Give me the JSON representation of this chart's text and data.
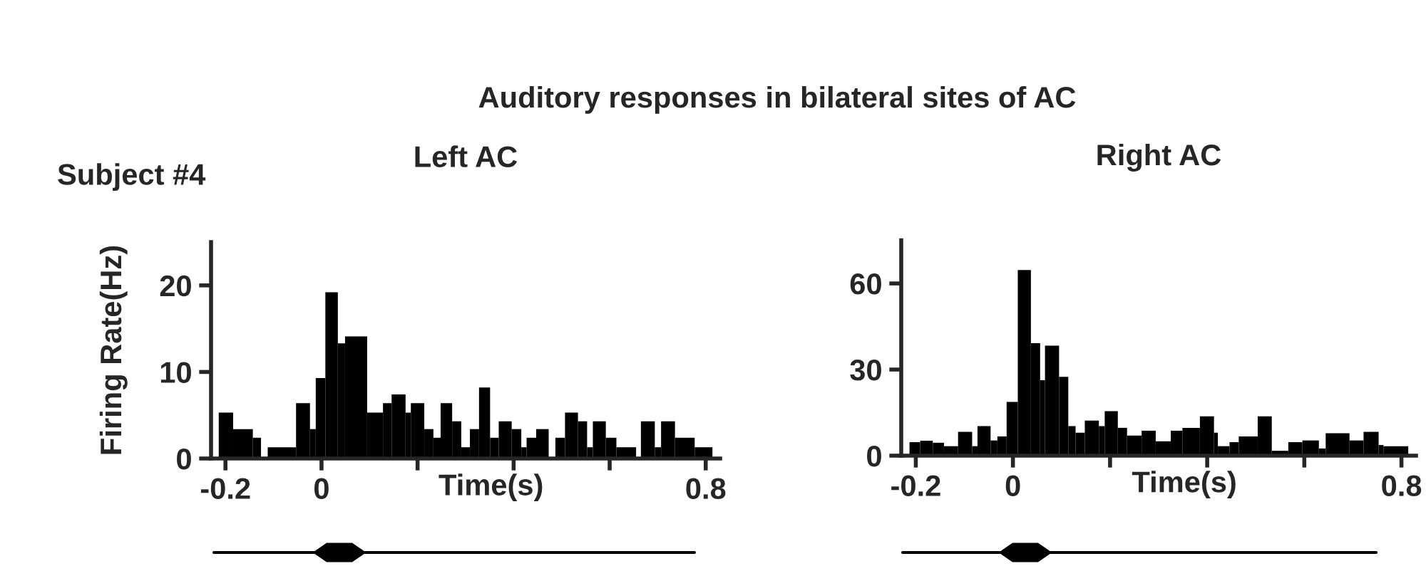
{
  "chart_data": [
    {
      "type": "histogram",
      "title": "Left AC",
      "xlabel": "Time(s)",
      "ylabel": "Firing Rate(Hz)",
      "annotations": [
        "Auditory responses in bilateral sites of AC",
        "Subject #4"
      ],
      "bins": [
        -0.214,
        -0.184,
        -0.143,
        -0.126,
        -0.112,
        -0.053,
        -0.024,
        -0.012,
        0.008,
        0.034,
        0.049,
        0.095,
        0.128,
        0.146,
        0.175,
        0.186,
        0.214,
        0.233,
        0.248,
        0.272,
        0.291,
        0.309,
        0.328,
        0.351,
        0.369,
        0.396,
        0.416,
        0.427,
        0.447,
        0.473,
        0.487,
        0.507,
        0.534,
        0.553,
        0.565,
        0.592,
        0.614,
        0.655,
        0.665,
        0.694,
        0.707,
        0.736,
        0.777,
        0.814
      ],
      "values": [
        5.3,
        3.4,
        2.4,
        0,
        1.3,
        6.4,
        3.4,
        9.3,
        19.2,
        13.3,
        14.1,
        5.3,
        6.4,
        7.4,
        5.3,
        6.4,
        3.4,
        2.4,
        6.4,
        4.3,
        1.3,
        3.4,
        8.2,
        2.4,
        4.3,
        3.4,
        1.3,
        2.4,
        3.4,
        0,
        2.4,
        5.3,
        4.3,
        1.3,
        4.3,
        2.4,
        1.3,
        0,
        4.3,
        1.3,
        4.3,
        2.4,
        1.3
      ],
      "color": "#000000",
      "xlim": [
        -0.23,
        0.83
      ],
      "ylim": [
        0,
        25
      ],
      "xticks": [
        -0.2,
        0,
        {
          "value": 0.2,
          "label": null
        },
        {
          "value": 0.4,
          "label": null
        },
        {
          "value": 0.6,
          "label": null
        },
        0.8
      ],
      "yticks": [
        0,
        10,
        20
      ]
    },
    {
      "type": "histogram",
      "title": "Right AC",
      "xlabel": "Time(s)",
      "bins": [
        -0.213,
        -0.191,
        -0.165,
        -0.142,
        -0.113,
        -0.084,
        -0.073,
        -0.046,
        -0.032,
        -0.013,
        0.01,
        0.037,
        0.056,
        0.066,
        0.095,
        0.114,
        0.129,
        0.148,
        0.177,
        0.189,
        0.216,
        0.235,
        0.265,
        0.294,
        0.325,
        0.349,
        0.385,
        0.414,
        0.422,
        0.446,
        0.465,
        0.504,
        0.533,
        0.567,
        0.596,
        0.63,
        0.644,
        0.693,
        0.722,
        0.753,
        0.763,
        0.814
      ],
      "values": [
        4.7,
        5.2,
        4.5,
        3.3,
        8.3,
        3.3,
        10.3,
        5.3,
        6.7,
        18.7,
        64.7,
        39.2,
        26.3,
        38.3,
        27.5,
        10.3,
        8,
        12.2,
        10.3,
        15.5,
        9.7,
        7,
        8.7,
        5,
        8.7,
        9.7,
        13.7,
        8,
        3.3,
        4.7,
        6.7,
        13.7,
        1.7,
        4.7,
        5.3,
        2.5,
        7.8,
        5.3,
        8.3,
        3.7,
        3.3
      ],
      "color": "#000000",
      "xlim": [
        -0.23,
        0.83
      ],
      "ylim": [
        0,
        75
      ],
      "xticks": [
        -0.2,
        0,
        {
          "value": 0.2,
          "label": null
        },
        {
          "value": 0.4,
          "label": null
        },
        {
          "value": 0.6,
          "label": null
        },
        0.8
      ],
      "yticks": [
        0,
        30,
        60
      ]
    }
  ]
}
